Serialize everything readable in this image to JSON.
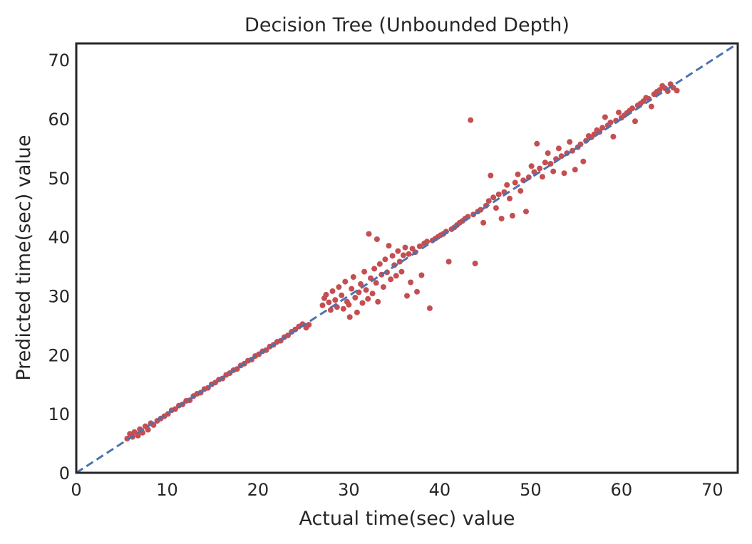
{
  "chart_data": {
    "type": "scatter",
    "title": "Decision Tree (Unbounded Depth)",
    "xlabel": "Actual time(sec) value",
    "ylabel": "Predicted time(sec) value",
    "xlim": [
      0,
      72.8
    ],
    "ylim": [
      0,
      72.8
    ],
    "xticks": [
      0,
      10,
      20,
      30,
      40,
      50,
      60,
      70
    ],
    "yticks": [
      0,
      10,
      20,
      30,
      40,
      50,
      60,
      70
    ],
    "grid": false,
    "legend": "none",
    "point_color": "#c44e52",
    "reference_line": {
      "style": "dashed",
      "color": "#4c72b0",
      "from": [
        0,
        0
      ],
      "to": [
        72.8,
        72.8
      ]
    },
    "series": [
      {
        "name": "",
        "points": [
          [
            5.6,
            5.8
          ],
          [
            5.9,
            6.6
          ],
          [
            6.2,
            6.1
          ],
          [
            6.4,
            6.9
          ],
          [
            6.8,
            6.3
          ],
          [
            7.0,
            7.4
          ],
          [
            7.3,
            6.8
          ],
          [
            7.6,
            7.9
          ],
          [
            7.9,
            7.3
          ],
          [
            8.2,
            8.4
          ],
          [
            8.5,
            8.1
          ],
          [
            8.9,
            8.8
          ],
          [
            9.3,
            9.2
          ],
          [
            9.7,
            9.6
          ],
          [
            10.1,
            10.0
          ],
          [
            10.5,
            10.6
          ],
          [
            10.9,
            10.8
          ],
          [
            11.3,
            11.4
          ],
          [
            11.7,
            11.6
          ],
          [
            12.1,
            12.2
          ],
          [
            12.5,
            12.3
          ],
          [
            12.9,
            13.0
          ],
          [
            13.3,
            13.4
          ],
          [
            13.7,
            13.6
          ],
          [
            14.1,
            14.2
          ],
          [
            14.5,
            14.4
          ],
          [
            14.9,
            15.0
          ],
          [
            15.3,
            15.3
          ],
          [
            15.7,
            15.8
          ],
          [
            16.1,
            16.0
          ],
          [
            16.5,
            16.6
          ],
          [
            16.9,
            16.9
          ],
          [
            17.3,
            17.4
          ],
          [
            17.7,
            17.6
          ],
          [
            18.1,
            18.2
          ],
          [
            18.5,
            18.5
          ],
          [
            18.9,
            19.0
          ],
          [
            19.3,
            19.2
          ],
          [
            19.7,
            19.8
          ],
          [
            20.1,
            20.1
          ],
          [
            20.5,
            20.6
          ],
          [
            20.9,
            20.8
          ],
          [
            21.3,
            21.4
          ],
          [
            21.7,
            21.7
          ],
          [
            22.1,
            22.2
          ],
          [
            22.5,
            22.4
          ],
          [
            22.9,
            23.0
          ],
          [
            23.3,
            23.3
          ],
          [
            23.7,
            23.9
          ],
          [
            24.1,
            24.3
          ],
          [
            24.5,
            24.8
          ],
          [
            24.9,
            25.2
          ],
          [
            25.3,
            24.6
          ],
          [
            25.6,
            25.1
          ],
          [
            27.1,
            28.4
          ],
          [
            27.3,
            29.6
          ],
          [
            27.5,
            30.2
          ],
          [
            27.8,
            28.9
          ],
          [
            28.0,
            27.6
          ],
          [
            28.2,
            30.8
          ],
          [
            28.5,
            29.3
          ],
          [
            28.7,
            28.1
          ],
          [
            28.9,
            31.5
          ],
          [
            29.2,
            30.1
          ],
          [
            29.4,
            27.8
          ],
          [
            29.6,
            32.4
          ],
          [
            29.8,
            29.0
          ],
          [
            30.0,
            28.5
          ],
          [
            30.1,
            26.4
          ],
          [
            30.3,
            31.2
          ],
          [
            30.5,
            33.2
          ],
          [
            30.7,
            29.7
          ],
          [
            30.9,
            27.2
          ],
          [
            31.1,
            30.6
          ],
          [
            31.3,
            32.0
          ],
          [
            31.5,
            28.8
          ],
          [
            31.7,
            34.1
          ],
          [
            31.9,
            31.0
          ],
          [
            32.1,
            29.5
          ],
          [
            32.2,
            40.5
          ],
          [
            32.4,
            33.0
          ],
          [
            32.6,
            30.4
          ],
          [
            32.8,
            34.6
          ],
          [
            33.0,
            32.2
          ],
          [
            33.1,
            39.6
          ],
          [
            33.2,
            29.0
          ],
          [
            33.4,
            35.4
          ],
          [
            33.6,
            33.6
          ],
          [
            33.8,
            31.5
          ],
          [
            34.0,
            36.2
          ],
          [
            34.2,
            34.0
          ],
          [
            34.4,
            38.5
          ],
          [
            34.6,
            32.8
          ],
          [
            34.8,
            36.8
          ],
          [
            35.0,
            35.2
          ],
          [
            35.2,
            33.4
          ],
          [
            35.4,
            37.6
          ],
          [
            35.6,
            35.8
          ],
          [
            35.8,
            34.1
          ],
          [
            36.0,
            36.9
          ],
          [
            36.2,
            38.2
          ],
          [
            36.4,
            30.0
          ],
          [
            36.6,
            37.1
          ],
          [
            36.8,
            32.3
          ],
          [
            37.0,
            38.0
          ],
          [
            37.3,
            37.4
          ],
          [
            37.5,
            30.7
          ],
          [
            37.8,
            38.4
          ],
          [
            38.0,
            33.5
          ],
          [
            38.3,
            38.9
          ],
          [
            38.6,
            39.2
          ],
          [
            38.9,
            27.9
          ],
          [
            39.2,
            39.4
          ],
          [
            39.5,
            39.7
          ],
          [
            39.8,
            40.0
          ],
          [
            40.1,
            40.3
          ],
          [
            40.4,
            40.5
          ],
          [
            40.7,
            40.9
          ],
          [
            41.0,
            35.8
          ],
          [
            41.3,
            41.3
          ],
          [
            41.6,
            41.6
          ],
          [
            41.9,
            42.0
          ],
          [
            42.2,
            42.4
          ],
          [
            42.5,
            42.7
          ],
          [
            42.8,
            43.1
          ],
          [
            43.1,
            43.4
          ],
          [
            43.4,
            59.8
          ],
          [
            43.7,
            43.8
          ],
          [
            43.9,
            35.5
          ],
          [
            44.2,
            44.3
          ],
          [
            44.5,
            44.6
          ],
          [
            44.8,
            42.4
          ],
          [
            45.1,
            45.3
          ],
          [
            45.4,
            46.1
          ],
          [
            45.6,
            50.4
          ],
          [
            45.9,
            46.7
          ],
          [
            46.2,
            44.9
          ],
          [
            46.5,
            47.2
          ],
          [
            46.8,
            43.1
          ],
          [
            47.1,
            47.6
          ],
          [
            47.4,
            48.8
          ],
          [
            47.7,
            46.5
          ],
          [
            48.0,
            43.6
          ],
          [
            48.3,
            49.2
          ],
          [
            48.6,
            50.6
          ],
          [
            48.9,
            47.8
          ],
          [
            49.2,
            49.6
          ],
          [
            49.5,
            44.3
          ],
          [
            49.8,
            50.1
          ],
          [
            50.1,
            52.0
          ],
          [
            50.4,
            51.0
          ],
          [
            50.7,
            55.8
          ],
          [
            51.0,
            51.6
          ],
          [
            51.3,
            50.2
          ],
          [
            51.6,
            52.6
          ],
          [
            51.9,
            54.2
          ],
          [
            52.2,
            52.4
          ],
          [
            52.5,
            51.1
          ],
          [
            52.8,
            53.2
          ],
          [
            53.1,
            55.0
          ],
          [
            53.4,
            53.7
          ],
          [
            53.7,
            50.8
          ],
          [
            54.0,
            54.2
          ],
          [
            54.3,
            56.1
          ],
          [
            54.6,
            54.6
          ],
          [
            54.9,
            51.4
          ],
          [
            55.2,
            55.2
          ],
          [
            55.5,
            55.7
          ],
          [
            55.8,
            52.8
          ],
          [
            56.1,
            56.3
          ],
          [
            56.4,
            57.1
          ],
          [
            56.7,
            56.9
          ],
          [
            57.0,
            57.4
          ],
          [
            57.3,
            58.1
          ],
          [
            57.6,
            57.8
          ],
          [
            57.9,
            58.5
          ],
          [
            58.2,
            60.3
          ],
          [
            58.5,
            58.9
          ],
          [
            58.8,
            59.4
          ],
          [
            59.1,
            57.0
          ],
          [
            59.4,
            59.7
          ],
          [
            59.7,
            61.1
          ],
          [
            60.0,
            60.2
          ],
          [
            60.3,
            60.6
          ],
          [
            60.6,
            61.0
          ],
          [
            60.9,
            61.4
          ],
          [
            61.2,
            61.8
          ],
          [
            61.5,
            59.6
          ],
          [
            61.8,
            62.3
          ],
          [
            62.1,
            62.6
          ],
          [
            62.4,
            63.0
          ],
          [
            62.7,
            63.6
          ],
          [
            63.0,
            63.4
          ],
          [
            63.3,
            62.1
          ],
          [
            63.6,
            64.2
          ],
          [
            63.9,
            64.6
          ],
          [
            64.2,
            64.9
          ],
          [
            64.5,
            65.6
          ],
          [
            64.8,
            65.2
          ],
          [
            65.1,
            64.7
          ],
          [
            65.4,
            65.9
          ],
          [
            65.7,
            65.3
          ],
          [
            66.1,
            64.8
          ]
        ]
      }
    ]
  }
}
